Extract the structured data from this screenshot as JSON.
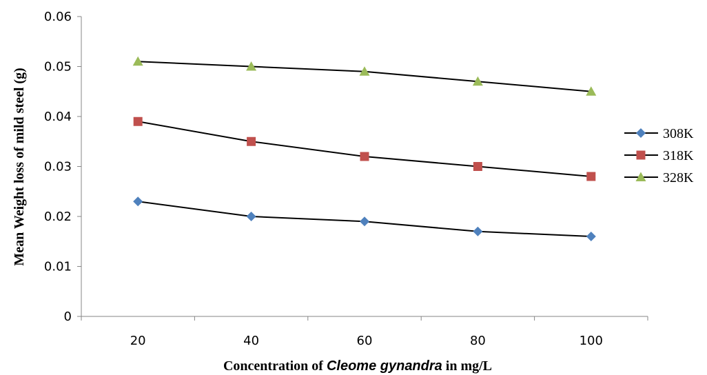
{
  "chart_data": {
    "type": "line",
    "categories": [
      "20",
      "40",
      "60",
      "80",
      "100"
    ],
    "series": [
      {
        "name": "308K",
        "values": [
          0.023,
          0.02,
          0.019,
          0.017,
          0.016
        ],
        "color": "#4F81BD",
        "marker": "diamond"
      },
      {
        "name": "318K",
        "values": [
          0.039,
          0.035,
          0.032,
          0.03,
          0.028
        ],
        "color": "#C0504D",
        "marker": "square"
      },
      {
        "name": "328K",
        "values": [
          0.051,
          0.05,
          0.049,
          0.047,
          0.045
        ],
        "color": "#9BBB59",
        "marker": "triangle"
      }
    ],
    "ylim": [
      0,
      0.06
    ],
    "yticks": [
      "0",
      "0.01",
      "0.02",
      "0.03",
      "0.04",
      "0.05",
      "0.06"
    ],
    "ylabel": "Mean Weight loss of mild steel (g)",
    "xlabel_parts": {
      "before": "Concentration of ",
      "italic": "Cleome gynandra",
      "after": " in mg/L"
    },
    "grid": false,
    "legend_position": "right"
  }
}
